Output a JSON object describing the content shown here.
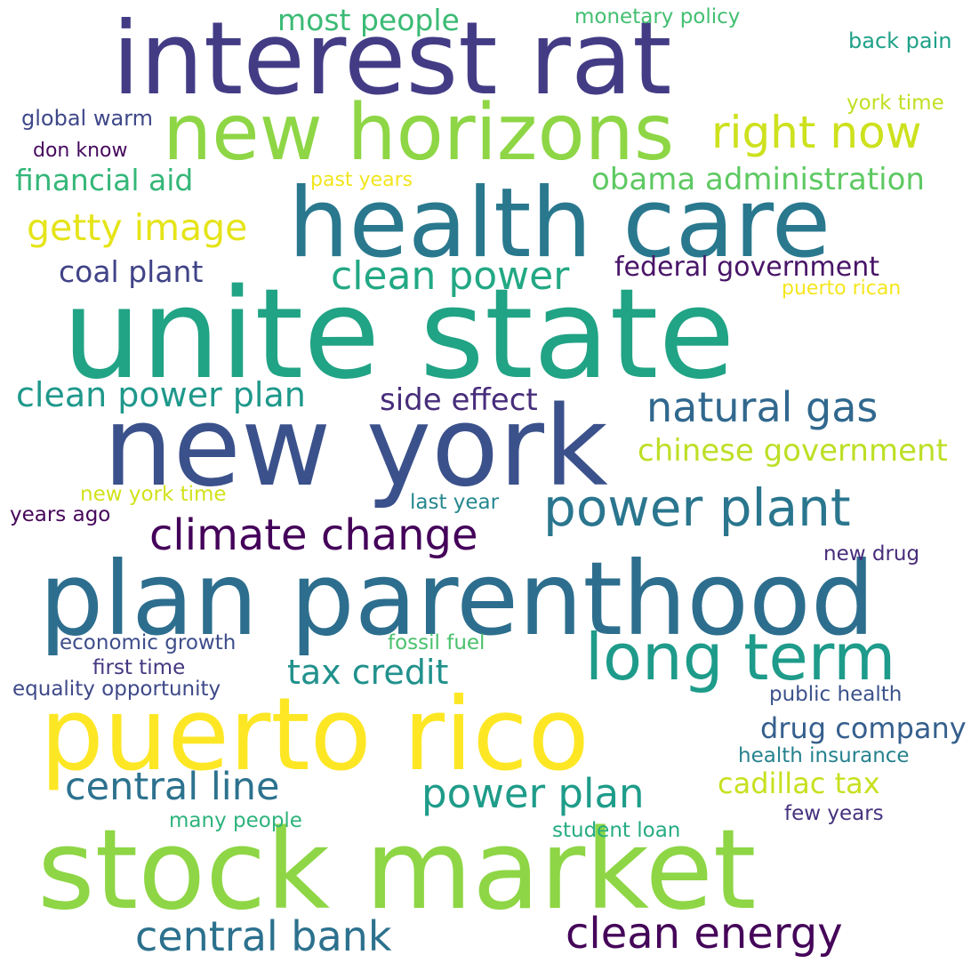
{
  "words": [
    {
      "text": "interest rat",
      "color": "#433c85"
    },
    {
      "text": "new horizons",
      "color": "#8ed645"
    },
    {
      "text": "health care",
      "color": "#29788e"
    },
    {
      "text": "unite state",
      "color": "#21a385"
    },
    {
      "text": "new york",
      "color": "#3b518b"
    },
    {
      "text": "plan parenthood",
      "color": "#2d6e8e"
    },
    {
      "text": "puerto rico",
      "color": "#fde725"
    },
    {
      "text": "stock market",
      "color": "#8ed645"
    },
    {
      "text": "right now",
      "color": "#cde11d"
    },
    {
      "text": "most people",
      "color": "#3bbb75"
    },
    {
      "text": "monetary policy",
      "color": "#43bf71"
    },
    {
      "text": "back pain",
      "color": "#1fa187"
    },
    {
      "text": "york time",
      "color": "#c2df23"
    },
    {
      "text": "global warm",
      "color": "#3f4889"
    },
    {
      "text": "don know",
      "color": "#460a5d"
    },
    {
      "text": "financial aid",
      "color": "#35b779"
    },
    {
      "text": "past years",
      "color": "#f1e51d"
    },
    {
      "text": "obama administration",
      "color": "#5ec962"
    },
    {
      "text": "getty image",
      "color": "#e5e419"
    },
    {
      "text": "coal plant",
      "color": "#404387"
    },
    {
      "text": "clean power",
      "color": "#22a884"
    },
    {
      "text": "federal government",
      "color": "#481467"
    },
    {
      "text": "puerto rican",
      "color": "#f4e61e"
    },
    {
      "text": "clean power plan",
      "color": "#1f988b"
    },
    {
      "text": "side effect",
      "color": "#472d7b"
    },
    {
      "text": "natural gas",
      "color": "#31688e"
    },
    {
      "text": "chinese government",
      "color": "#bddf26"
    },
    {
      "text": "new york time",
      "color": "#d2e21b"
    },
    {
      "text": "last year",
      "color": "#24878e"
    },
    {
      "text": "years ago",
      "color": "#46075a"
    },
    {
      "text": "power plant",
      "color": "#2a768e"
    },
    {
      "text": "climate change",
      "color": "#44015a"
    },
    {
      "text": "new drug",
      "color": "#472c7a"
    },
    {
      "text": "long term",
      "color": "#1e9b8a"
    },
    {
      "text": "economic growth",
      "color": "#3d4d8a"
    },
    {
      "text": "fossil fuel",
      "color": "#4ac16d"
    },
    {
      "text": "first time",
      "color": "#453781"
    },
    {
      "text": "tax credit",
      "color": "#21918c"
    },
    {
      "text": "equality opportunity",
      "color": "#3e4989"
    },
    {
      "text": "public health",
      "color": "#3b528b"
    },
    {
      "text": "drug company",
      "color": "#355f8d"
    },
    {
      "text": "health insurance",
      "color": "#26828e"
    },
    {
      "text": "central line",
      "color": "#2c728e"
    },
    {
      "text": "power plan",
      "color": "#1e9c89"
    },
    {
      "text": "cadillac tax",
      "color": "#c8e020"
    },
    {
      "text": "few years",
      "color": "#46327e"
    },
    {
      "text": "many people",
      "color": "#2eb37c"
    },
    {
      "text": "student loan",
      "color": "#25ac82"
    },
    {
      "text": "central bank",
      "color": "#2c718e"
    },
    {
      "text": "clean energy",
      "color": "#450559"
    }
  ]
}
